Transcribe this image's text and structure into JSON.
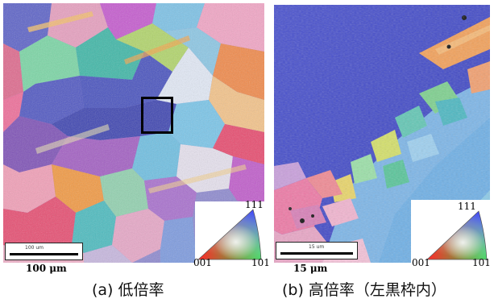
{
  "panel_a": {
    "scale_label": "100 μm",
    "scalebar_caption": "100 um",
    "caption": "(a) 低倍率",
    "legend": {
      "top": "111",
      "left": "001",
      "right": "101"
    }
  },
  "panel_b": {
    "scale_label": "15 μm",
    "scalebar_caption": "15 um",
    "caption": "(b) 高倍率（左黒枠内）",
    "legend": {
      "top": "111",
      "left": "001",
      "right": "101"
    }
  }
}
